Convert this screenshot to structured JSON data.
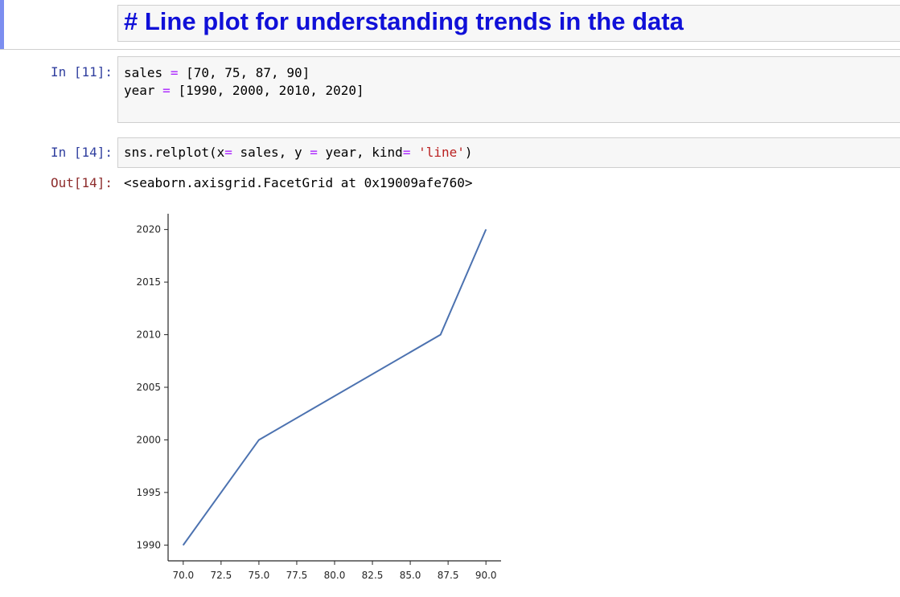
{
  "markdown_cell": {
    "title": "# Line plot for understanding trends in the data"
  },
  "cell_11": {
    "prompt": "In [11]:",
    "line1": {
      "var": "sales",
      "op": "=",
      "value": "[70, 75, 87, 90]"
    },
    "line2": {
      "var": "year",
      "op": "=",
      "value": "[1990, 2000, 2010, 2020]"
    }
  },
  "cell_14": {
    "prompt": "In [14]:",
    "code": {
      "call": "sns.relplot(x",
      "op1": "=",
      "mid": " sales, y ",
      "op2": "=",
      "mid2": " year, kind",
      "op3": "=",
      "space": " ",
      "str": "'line'",
      "close": ")"
    },
    "out_prompt": "Out[14]:",
    "output": "<seaborn.axisgrid.FacetGrid at 0x19009afe760>"
  },
  "chart_data": {
    "type": "line",
    "x": [
      70,
      75,
      87,
      90
    ],
    "y": [
      1990,
      2000,
      2010,
      2020
    ],
    "xlim": [
      69.0,
      91.0
    ],
    "ylim": [
      1988.5,
      2021.5
    ],
    "xticks": [
      "70.0",
      "72.5",
      "75.0",
      "77.5",
      "80.0",
      "82.5",
      "85.0",
      "87.5",
      "90.0"
    ],
    "yticks": [
      "1990",
      "1995",
      "2000",
      "2005",
      "2010",
      "2015",
      "2020"
    ],
    "line_color": "#4c72b0",
    "xlabel": "",
    "ylabel": "",
    "grid": false
  }
}
